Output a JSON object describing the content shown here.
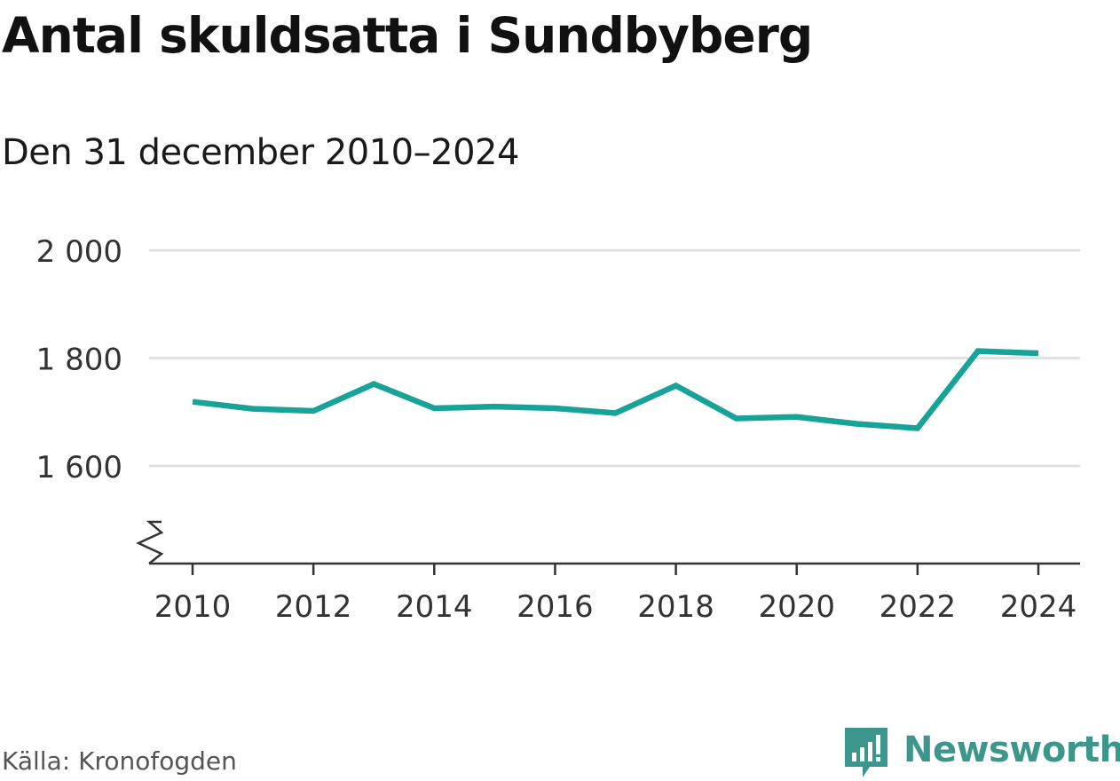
{
  "header": {
    "title": "Antal skuldsatta i Sundbyberg",
    "subtitle": "Den 31 december 2010–2024"
  },
  "footer": {
    "source": "Källa: Kronofogden",
    "brand": "Newsworthy"
  },
  "colors": {
    "line": "#17a398",
    "grid": "#dddddd",
    "axis": "#333333",
    "brand": "#3d968c"
  },
  "chart_data": {
    "type": "line",
    "title": "Antal skuldsatta i Sundbyberg",
    "subtitle": "Den 31 december 2010–2024",
    "xlabel": "",
    "ylabel": "",
    "x": [
      2010,
      2011,
      2012,
      2013,
      2014,
      2015,
      2016,
      2017,
      2018,
      2019,
      2020,
      2021,
      2022,
      2023,
      2024
    ],
    "series": [
      {
        "name": "Antal skuldsatta",
        "values": [
          1719,
          1706,
          1702,
          1752,
          1707,
          1710,
          1707,
          1698,
          1749,
          1688,
          1691,
          1678,
          1670,
          1813,
          1809
        ]
      }
    ],
    "ylim": [
      1420,
      2000
    ],
    "axis_break": true,
    "yticks": [
      1600,
      1800,
      2000
    ],
    "ytick_labels": [
      "1 600",
      "1 800",
      "2 000"
    ],
    "xticks": [
      2010,
      2012,
      2014,
      2016,
      2018,
      2020,
      2022,
      2024
    ],
    "xtick_labels": [
      "2010",
      "2012",
      "2014",
      "2016",
      "2018",
      "2020",
      "2022",
      "2024"
    ],
    "grid": true,
    "legend": "none"
  }
}
